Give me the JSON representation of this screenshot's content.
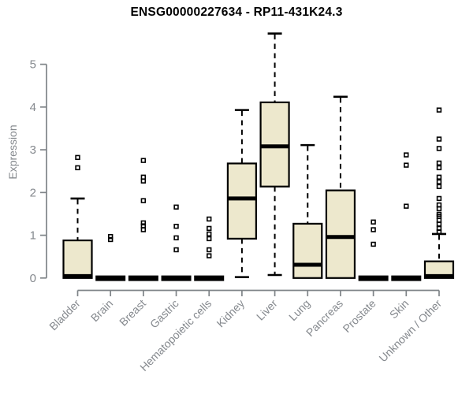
{
  "chart_data": {
    "type": "boxplot",
    "title": "ENSG00000227634 - RP11-431K24.3",
    "ylabel": "Expression",
    "xlabel": "",
    "ylim": [
      0,
      5
    ],
    "yticks": [
      0,
      1,
      2,
      3,
      4,
      5
    ],
    "grid": false,
    "legend": "none",
    "categories": [
      "Bladder",
      "Brain",
      "Breast",
      "Gastric",
      "Hematopoietic cells",
      "Kidney",
      "Liver",
      "Lung",
      "Pancreas",
      "Prostate",
      "Skin",
      "Unknown / Other"
    ],
    "boxes": [
      {
        "category": "Bladder",
        "low": 0,
        "q1": 0,
        "median": 0,
        "q3": 0.88,
        "high": 1.86,
        "outliers": [
          2.82,
          2.58
        ]
      },
      {
        "category": "Brain",
        "low": 0,
        "q1": 0,
        "median": 0,
        "q3": 0,
        "high": 0,
        "outliers": [
          0.97,
          0.9
        ]
      },
      {
        "category": "Breast",
        "low": 0,
        "q1": 0,
        "median": 0,
        "q3": 0,
        "high": 0,
        "outliers": [
          2.75,
          2.36,
          2.27,
          1.81,
          1.29,
          1.22,
          1.13
        ]
      },
      {
        "category": "Gastric",
        "low": 0,
        "q1": 0,
        "median": 0,
        "q3": 0,
        "high": 0,
        "outliers": [
          1.66,
          1.21,
          0.94,
          0.66
        ]
      },
      {
        "category": "Hematopoietic cells",
        "low": 0,
        "q1": 0,
        "median": 0,
        "q3": 0,
        "high": 0,
        "outliers": [
          1.38,
          1.16,
          1.03,
          0.92,
          0.66,
          0.52
        ]
      },
      {
        "category": "Kidney",
        "low": 0.02,
        "q1": 0.92,
        "median": 1.86,
        "q3": 2.68,
        "high": 3.93,
        "outliers": []
      },
      {
        "category": "Liver",
        "low": 0.07,
        "q1": 2.14,
        "median": 3.08,
        "q3": 4.11,
        "high": 5.72,
        "outliers": []
      },
      {
        "category": "Lung",
        "low": 0,
        "q1": 0,
        "median": 0.31,
        "q3": 1.27,
        "high": 3.11,
        "outliers": []
      },
      {
        "category": "Pancreas",
        "low": 0,
        "q1": 0,
        "median": 0.96,
        "q3": 2.05,
        "high": 4.24,
        "outliers": []
      },
      {
        "category": "Prostate",
        "low": 0,
        "q1": 0,
        "median": 0,
        "q3": 0,
        "high": 0,
        "outliers": [
          1.31,
          1.13,
          0.79
        ]
      },
      {
        "category": "Skin",
        "low": 0,
        "q1": 0,
        "median": 0,
        "q3": 0,
        "high": 0,
        "outliers": [
          2.88,
          2.64,
          1.68
        ]
      },
      {
        "category": "Unknown / Other",
        "low": 0,
        "q1": 0,
        "median": 0,
        "q3": 0.39,
        "high": 1.03,
        "outliers": [
          3.93,
          3.25,
          3.03,
          2.69,
          2.58,
          2.36,
          2.25,
          2.14,
          1.86,
          1.71,
          1.62,
          1.49,
          1.44,
          1.35,
          1.26,
          1.16,
          1.08
        ]
      }
    ],
    "colors": {
      "box_fill": "#ede8cd",
      "box_stroke": "#000000",
      "median": "#000000",
      "whisker": "#000000",
      "outlier_stroke": "#000000",
      "axis": "#7f8488",
      "tick_label": "#85898e",
      "title": "#000000",
      "background": "#ffffff"
    }
  }
}
